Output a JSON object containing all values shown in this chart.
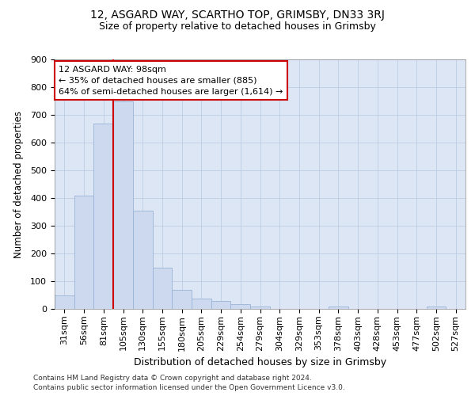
{
  "title1": "12, ASGARD WAY, SCARTHO TOP, GRIMSBY, DN33 3RJ",
  "title2": "Size of property relative to detached houses in Grimsby",
  "xlabel": "Distribution of detached houses by size in Grimsby",
  "ylabel": "Number of detached properties",
  "footer1": "Contains HM Land Registry data © Crown copyright and database right 2024.",
  "footer2": "Contains public sector information licensed under the Open Government Licence v3.0.",
  "categories": [
    "31sqm",
    "56sqm",
    "81sqm",
    "105sqm",
    "130sqm",
    "155sqm",
    "180sqm",
    "205sqm",
    "229sqm",
    "254sqm",
    "279sqm",
    "304sqm",
    "329sqm",
    "353sqm",
    "378sqm",
    "403sqm",
    "428sqm",
    "453sqm",
    "477sqm",
    "502sqm",
    "527sqm"
  ],
  "values": [
    50,
    410,
    670,
    750,
    355,
    150,
    70,
    38,
    30,
    18,
    10,
    0,
    0,
    0,
    8,
    0,
    0,
    0,
    0,
    8,
    0
  ],
  "bar_color": "#ccd9ee",
  "bar_edge_color": "#9ab3d5",
  "vline_color": "#cc0000",
  "vline_x": 2.5,
  "annotation_text": "12 ASGARD WAY: 98sqm\n← 35% of detached houses are smaller (885)\n64% of semi-detached houses are larger (1,614) →",
  "ylim": [
    0,
    900
  ],
  "yticks": [
    0,
    100,
    200,
    300,
    400,
    500,
    600,
    700,
    800,
    900
  ],
  "bg_color": "#dde6f5",
  "grid_color": "#b8c8e0",
  "title1_fontsize": 10,
  "title2_fontsize": 9,
  "xlabel_fontsize": 9,
  "ylabel_fontsize": 8.5,
  "tick_fontsize": 8,
  "annot_fontsize": 8,
  "footer_fontsize": 6.5
}
